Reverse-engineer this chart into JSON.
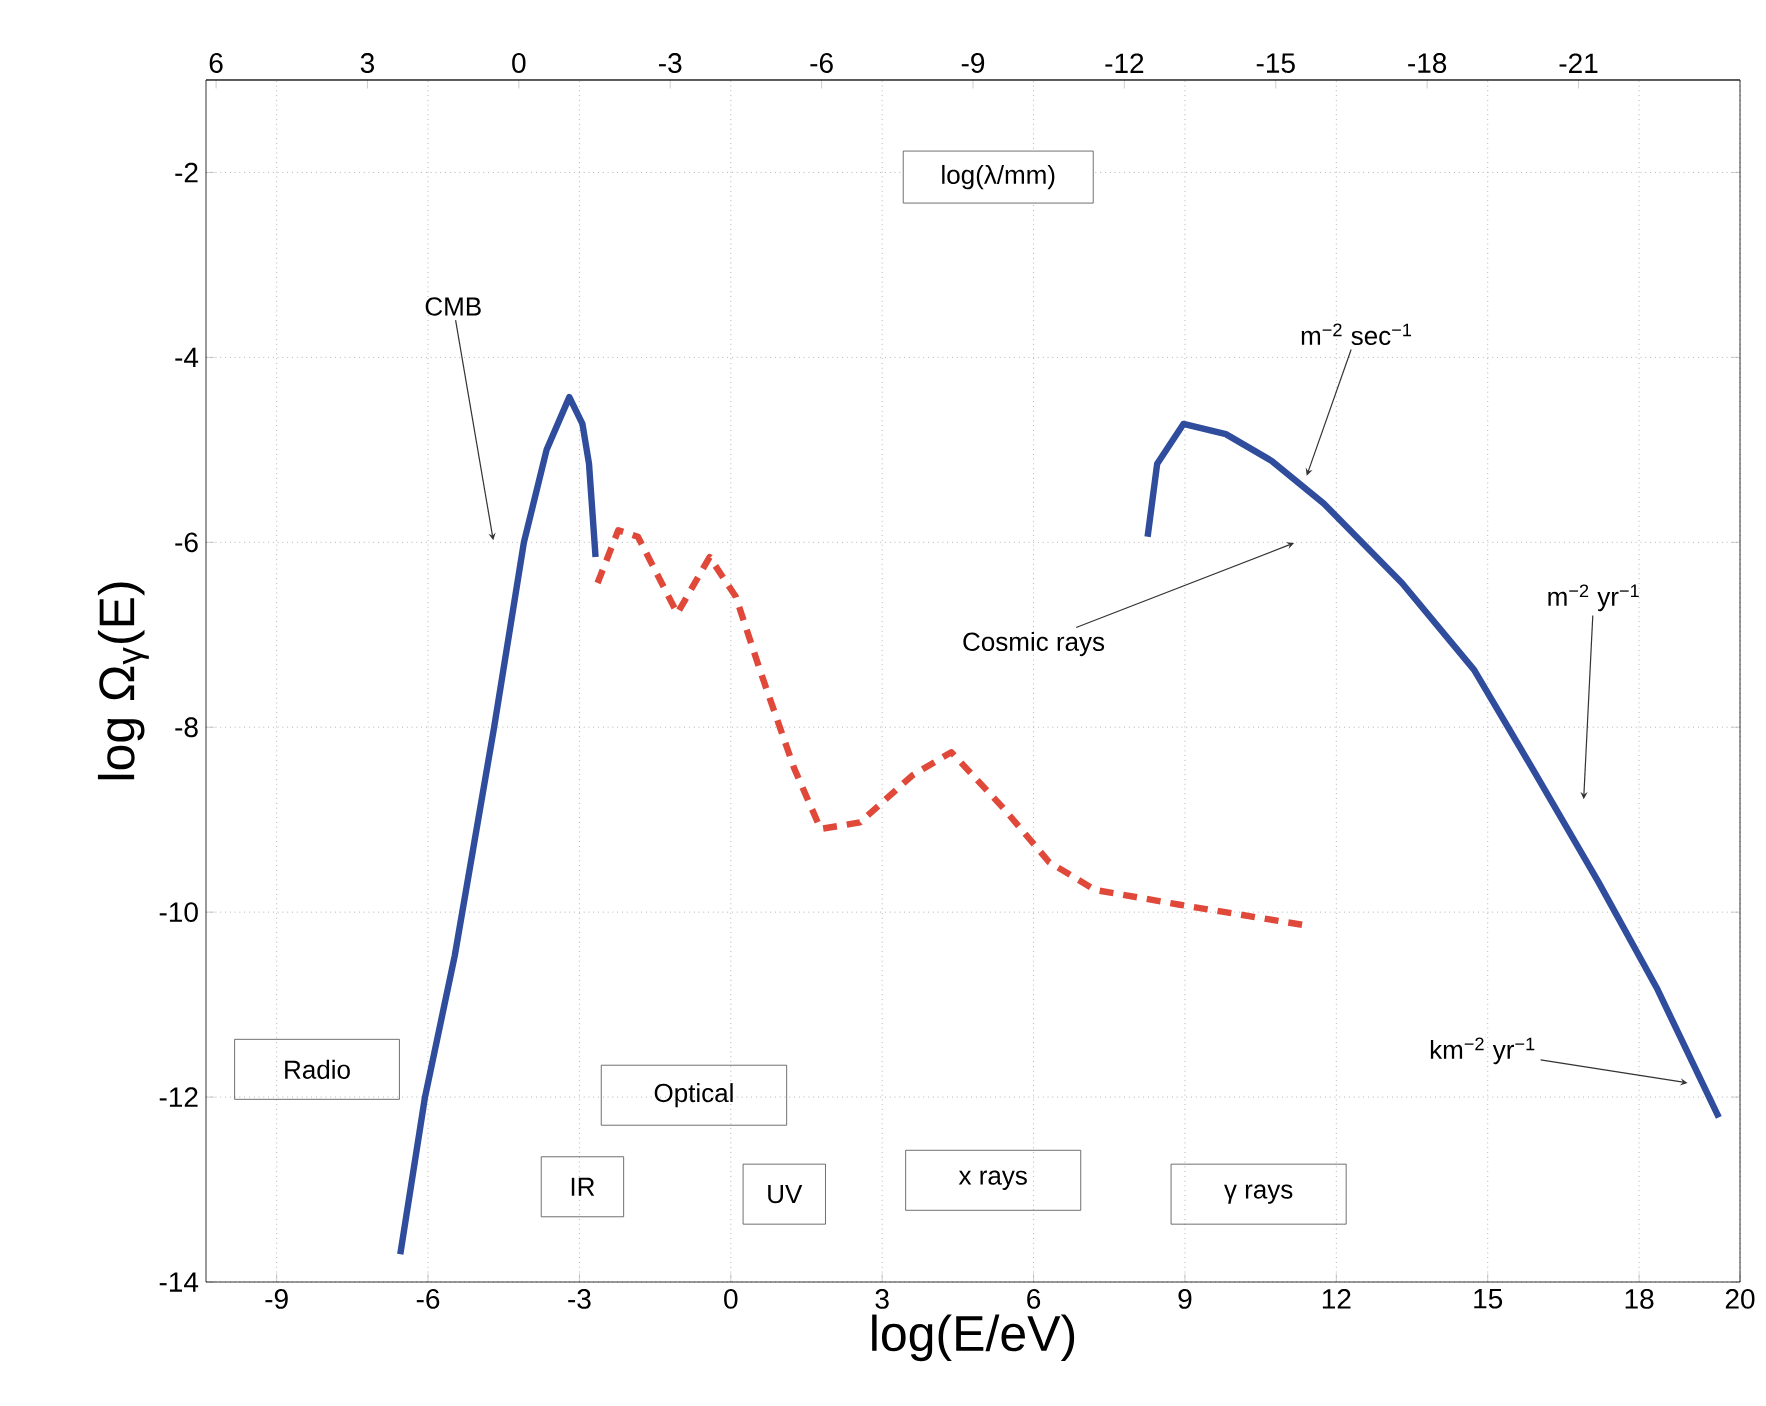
{
  "chart_data": {
    "type": "line",
    "xlabel": "log(E/eV)",
    "ylabel": "log Ω$_{γ}$(E)",
    "x2label": "log(λ/mm)",
    "xlim": [
      -10.4,
      20
    ],
    "xticks": [
      -9,
      -6,
      -3,
      0,
      3,
      6,
      9,
      12,
      15,
      18,
      20
    ],
    "x2lim": [
      6.2,
      -24.2
    ],
    "x2ticks": [
      6,
      3,
      0,
      -3,
      -6,
      -9,
      -12,
      -15,
      -18,
      -21
    ],
    "ylim": [
      -14,
      -1
    ],
    "yticks": [
      -14,
      -12,
      -10,
      -8,
      -6,
      -4,
      -2
    ],
    "grid": true,
    "series": [
      {
        "color": "#2f4d9c",
        "line_style": "solid",
        "x": [
          -6.55,
          -6.06,
          -5.47,
          -4.69,
          -4.1,
          -3.65,
          -3.2,
          -2.94,
          -2.81,
          -2.68
        ],
        "values": [
          -13.7,
          -12.0,
          -10.47,
          -8.0,
          -6.0,
          -5.0,
          -4.43,
          -4.72,
          -5.15,
          -6.16
        ]
      },
      {
        "color": "#e0483a",
        "line_style": "dashed",
        "x": [
          -2.64,
          -2.23,
          -1.84,
          -1.06,
          -0.42,
          0.1,
          0.62,
          1.26,
          1.78,
          2.56,
          3.6,
          4.37,
          5.41,
          6.31,
          7.22,
          8.9,
          11.36
        ],
        "values": [
          -6.44,
          -5.87,
          -5.94,
          -6.77,
          -6.16,
          -6.59,
          -7.45,
          -8.45,
          -9.1,
          -9.03,
          -8.52,
          -8.27,
          -8.88,
          -9.46,
          -9.76,
          -9.92,
          -10.14
        ]
      },
      {
        "color": "#2f4d9c",
        "line_style": "solid",
        "x": [
          8.26,
          8.45,
          8.97,
          9.81,
          10.72,
          11.75,
          13.3,
          14.73,
          15.89,
          17.19,
          18.35,
          19.58
        ],
        "values": [
          -5.94,
          -5.15,
          -4.72,
          -4.83,
          -5.12,
          -5.58,
          -6.44,
          -7.38,
          -8.45,
          -9.67,
          -10.82,
          -12.22
        ]
      }
    ],
    "annotations": [
      "CMB",
      {
        "text": "m$^{−2}$ sec$^{−1}$",
        "x": 11.4,
        "y": -5.3
      },
      "Cosmic rays",
      "m$^{−2}$ yr$^{−1}$",
      {
        "text": "km$^{−2}$ yr$^{−1}$",
        "x": 19.0,
        "y": -11.85
      },
      "Radio",
      "Optical",
      "IR",
      "UV",
      "x rays",
      "γ rays"
    ]
  }
}
